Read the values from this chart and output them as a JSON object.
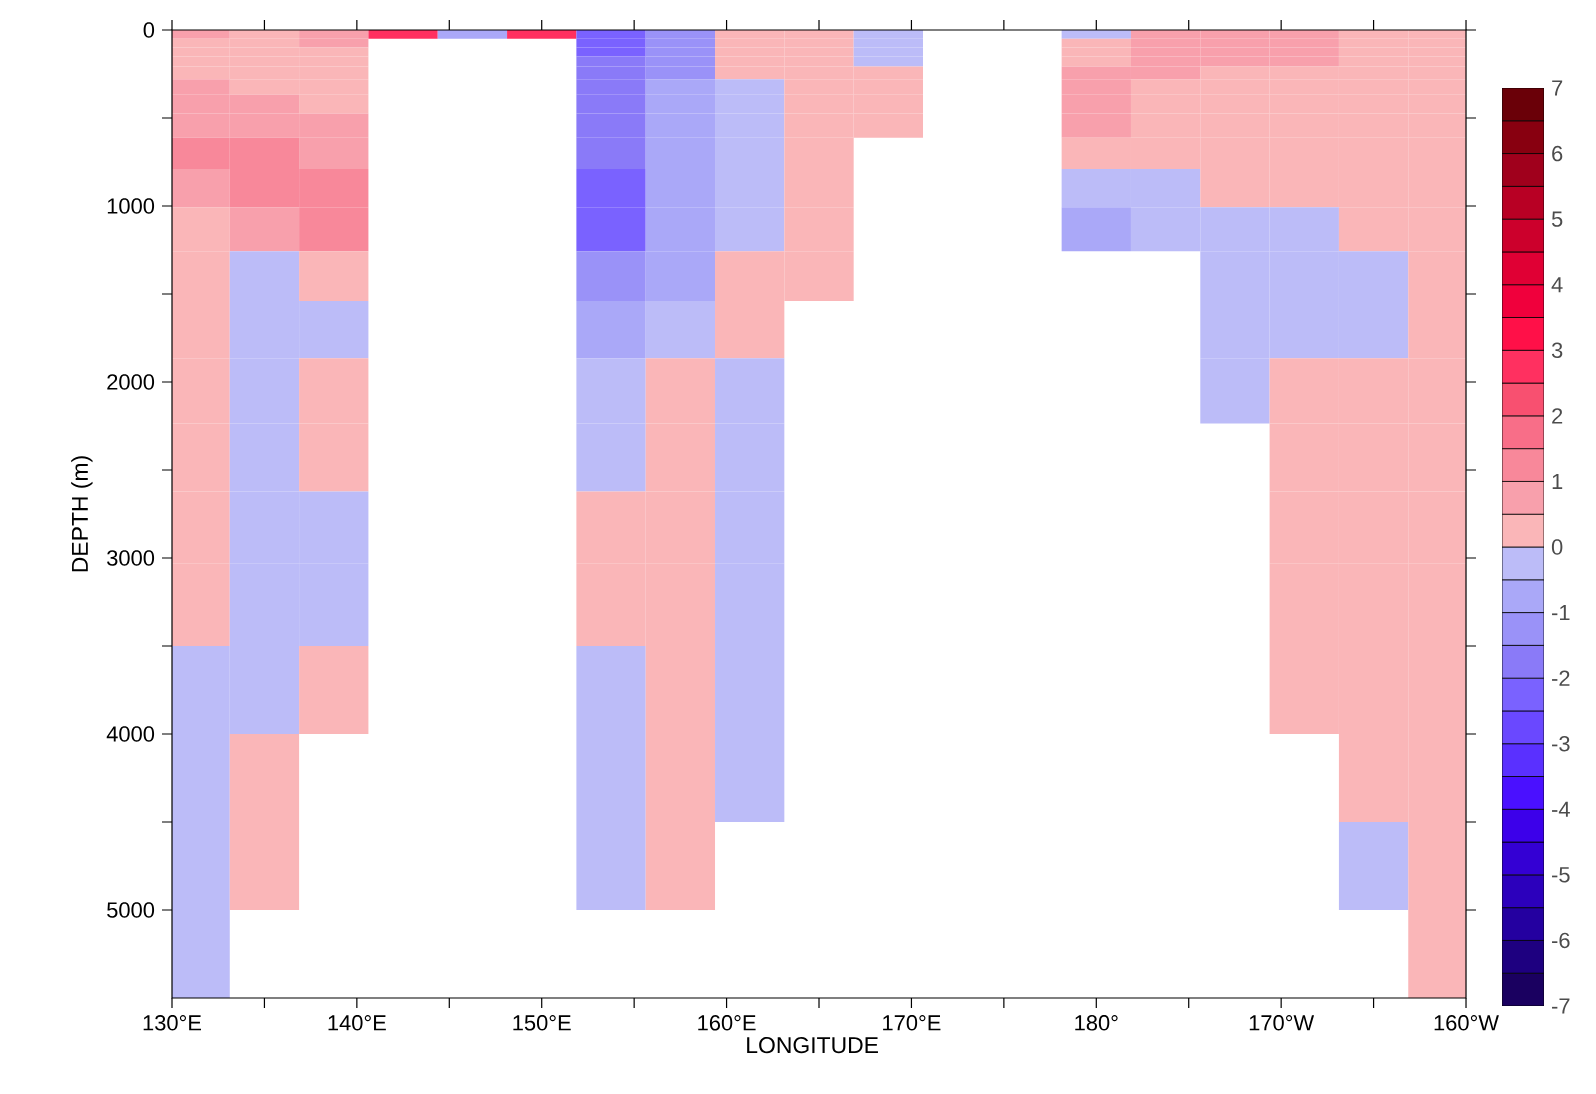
{
  "chart_data": {
    "type": "heatmap",
    "xlabel": "LONGITUDE",
    "ylabel": "DEPTH (m)",
    "x": [
      131.25,
      135,
      138.75,
      142.5,
      146.25,
      150,
      153.75,
      157.5,
      161.25,
      165,
      168.75,
      172.5,
      176.25,
      180,
      183.75,
      187.5,
      191.25,
      195,
      198.75
    ],
    "y": [
      25,
      75,
      125,
      175,
      240,
      320,
      415,
      535,
      690,
      890,
      1125,
      1390,
      1690,
      2040,
      2430,
      2815,
      3250,
      3750,
      4250,
      4750,
      5250
    ],
    "cells": [
      [
        0.75,
        0.25,
        0.75,
        2.75,
        -0.75,
        2.75,
        -2.25,
        -1.25,
        0.25,
        0.25,
        -0.25,
        null,
        null,
        -0.25,
        0.75,
        0.75,
        0.75,
        0.25,
        0.25
      ],
      [
        0.25,
        0.25,
        0.75,
        null,
        null,
        null,
        -2.25,
        -1.25,
        0.25,
        0.25,
        -0.25,
        null,
        null,
        0.25,
        0.75,
        0.75,
        0.75,
        0.25,
        0.25
      ],
      [
        0.25,
        0.25,
        0.25,
        null,
        null,
        null,
        -2.25,
        -1.25,
        0.25,
        0.25,
        -0.25,
        null,
        null,
        0.25,
        0.75,
        0.75,
        0.75,
        0.25,
        0.25
      ],
      [
        0.25,
        0.25,
        0.25,
        null,
        null,
        null,
        -1.75,
        -1.25,
        0.25,
        0.25,
        -0.25,
        null,
        null,
        0.25,
        0.75,
        0.75,
        0.75,
        0.25,
        0.25
      ],
      [
        0.25,
        0.25,
        0.25,
        null,
        null,
        null,
        -1.75,
        -1.25,
        0.25,
        0.25,
        0.25,
        null,
        null,
        0.75,
        0.75,
        0.25,
        0.25,
        0.25,
        0.25
      ],
      [
        0.75,
        0.25,
        0.25,
        null,
        null,
        null,
        -1.75,
        -0.75,
        -0.25,
        0.25,
        0.25,
        null,
        null,
        0.75,
        0.25,
        0.25,
        0.25,
        0.25,
        0.25
      ],
      [
        0.75,
        0.75,
        0.25,
        null,
        null,
        null,
        -1.75,
        -0.75,
        -0.25,
        0.25,
        0.25,
        null,
        null,
        0.75,
        0.25,
        0.25,
        0.25,
        0.25,
        0.25
      ],
      [
        0.75,
        0.75,
        0.75,
        null,
        null,
        null,
        -1.75,
        -0.75,
        -0.25,
        0.25,
        0.25,
        null,
        null,
        0.75,
        0.25,
        0.25,
        0.25,
        0.25,
        0.25
      ],
      [
        1.25,
        1.25,
        0.75,
        null,
        null,
        null,
        -1.75,
        -0.75,
        -0.25,
        0.25,
        null,
        null,
        null,
        0.25,
        0.25,
        0.25,
        0.25,
        0.25,
        0.25
      ],
      [
        0.75,
        1.25,
        1.25,
        null,
        null,
        null,
        -2.25,
        -0.75,
        -0.25,
        0.25,
        null,
        null,
        null,
        -0.25,
        -0.25,
        0.25,
        0.25,
        0.25,
        0.25
      ],
      [
        0.25,
        0.75,
        1.25,
        null,
        null,
        null,
        -2.25,
        -0.75,
        -0.25,
        0.25,
        null,
        null,
        null,
        -0.75,
        -0.25,
        -0.25,
        -0.25,
        0.25,
        0.25
      ],
      [
        0.25,
        -0.25,
        0.25,
        null,
        null,
        null,
        -1.25,
        -0.75,
        0.25,
        0.25,
        null,
        null,
        null,
        null,
        null,
        -0.25,
        -0.25,
        -0.25,
        0.25
      ],
      [
        0.25,
        -0.25,
        -0.25,
        null,
        null,
        null,
        -0.75,
        -0.25,
        0.25,
        null,
        null,
        null,
        null,
        null,
        null,
        -0.25,
        -0.25,
        -0.25,
        0.25
      ],
      [
        0.25,
        -0.25,
        0.25,
        null,
        null,
        null,
        -0.25,
        0.25,
        -0.25,
        null,
        null,
        null,
        null,
        null,
        null,
        -0.25,
        0.25,
        0.25,
        0.25
      ],
      [
        0.25,
        -0.25,
        0.25,
        null,
        null,
        null,
        -0.25,
        0.25,
        -0.25,
        null,
        null,
        null,
        null,
        null,
        null,
        null,
        0.25,
        0.25,
        0.25
      ],
      [
        0.25,
        -0.25,
        -0.25,
        null,
        null,
        null,
        0.25,
        0.25,
        -0.25,
        null,
        null,
        null,
        null,
        null,
        null,
        null,
        0.25,
        0.25,
        0.25
      ],
      [
        0.25,
        -0.25,
        -0.25,
        null,
        null,
        null,
        0.25,
        0.25,
        -0.25,
        null,
        null,
        null,
        null,
        null,
        null,
        null,
        0.25,
        0.25,
        0.25
      ],
      [
        -0.25,
        -0.25,
        0.25,
        null,
        null,
        null,
        -0.25,
        0.25,
        -0.25,
        null,
        null,
        null,
        null,
        null,
        null,
        null,
        0.25,
        0.25,
        0.25
      ],
      [
        -0.25,
        0.25,
        null,
        null,
        null,
        null,
        -0.25,
        0.25,
        -0.25,
        null,
        null,
        null,
        null,
        null,
        null,
        null,
        null,
        0.25,
        0.25
      ],
      [
        -0.25,
        0.25,
        null,
        null,
        null,
        null,
        -0.25,
        0.25,
        null,
        null,
        null,
        null,
        null,
        null,
        null,
        null,
        null,
        -0.25,
        0.25
      ],
      [
        -0.25,
        null,
        null,
        null,
        null,
        null,
        null,
        null,
        null,
        null,
        null,
        null,
        null,
        null,
        null,
        null,
        null,
        null,
        0.25
      ]
    ],
    "xlim": [
      130,
      200
    ],
    "xticks": [
      {
        "value": 130,
        "label": "130°E"
      },
      {
        "value": 135,
        "label": null
      },
      {
        "value": 140,
        "label": "140°E"
      },
      {
        "value": 145,
        "label": null
      },
      {
        "value": 150,
        "label": "150°E"
      },
      {
        "value": 155,
        "label": null
      },
      {
        "value": 160,
        "label": "160°E"
      },
      {
        "value": 165,
        "label": null
      },
      {
        "value": 170,
        "label": "170°E"
      },
      {
        "value": 175,
        "label": null
      },
      {
        "value": 180,
        "label": "180°"
      },
      {
        "value": 185,
        "label": null
      },
      {
        "value": 190,
        "label": "170°W"
      },
      {
        "value": 195,
        "label": null
      },
      {
        "value": 200,
        "label": "160°W"
      }
    ],
    "ylim": [
      5500,
      0
    ],
    "yticks": [
      0,
      {
        "value": 500,
        "label": null
      },
      1000,
      {
        "value": 1500,
        "label": null
      },
      2000,
      {
        "value": 2500,
        "label": null
      },
      3000,
      {
        "value": 3500,
        "label": null
      },
      4000,
      {
        "value": 4500,
        "label": null
      },
      5000
    ],
    "clim": [
      -7,
      7
    ],
    "cticks": [
      -7,
      -6,
      -5,
      -4,
      -3,
      -2,
      -1,
      0,
      1,
      2,
      3,
      4,
      5,
      6,
      7
    ]
  }
}
